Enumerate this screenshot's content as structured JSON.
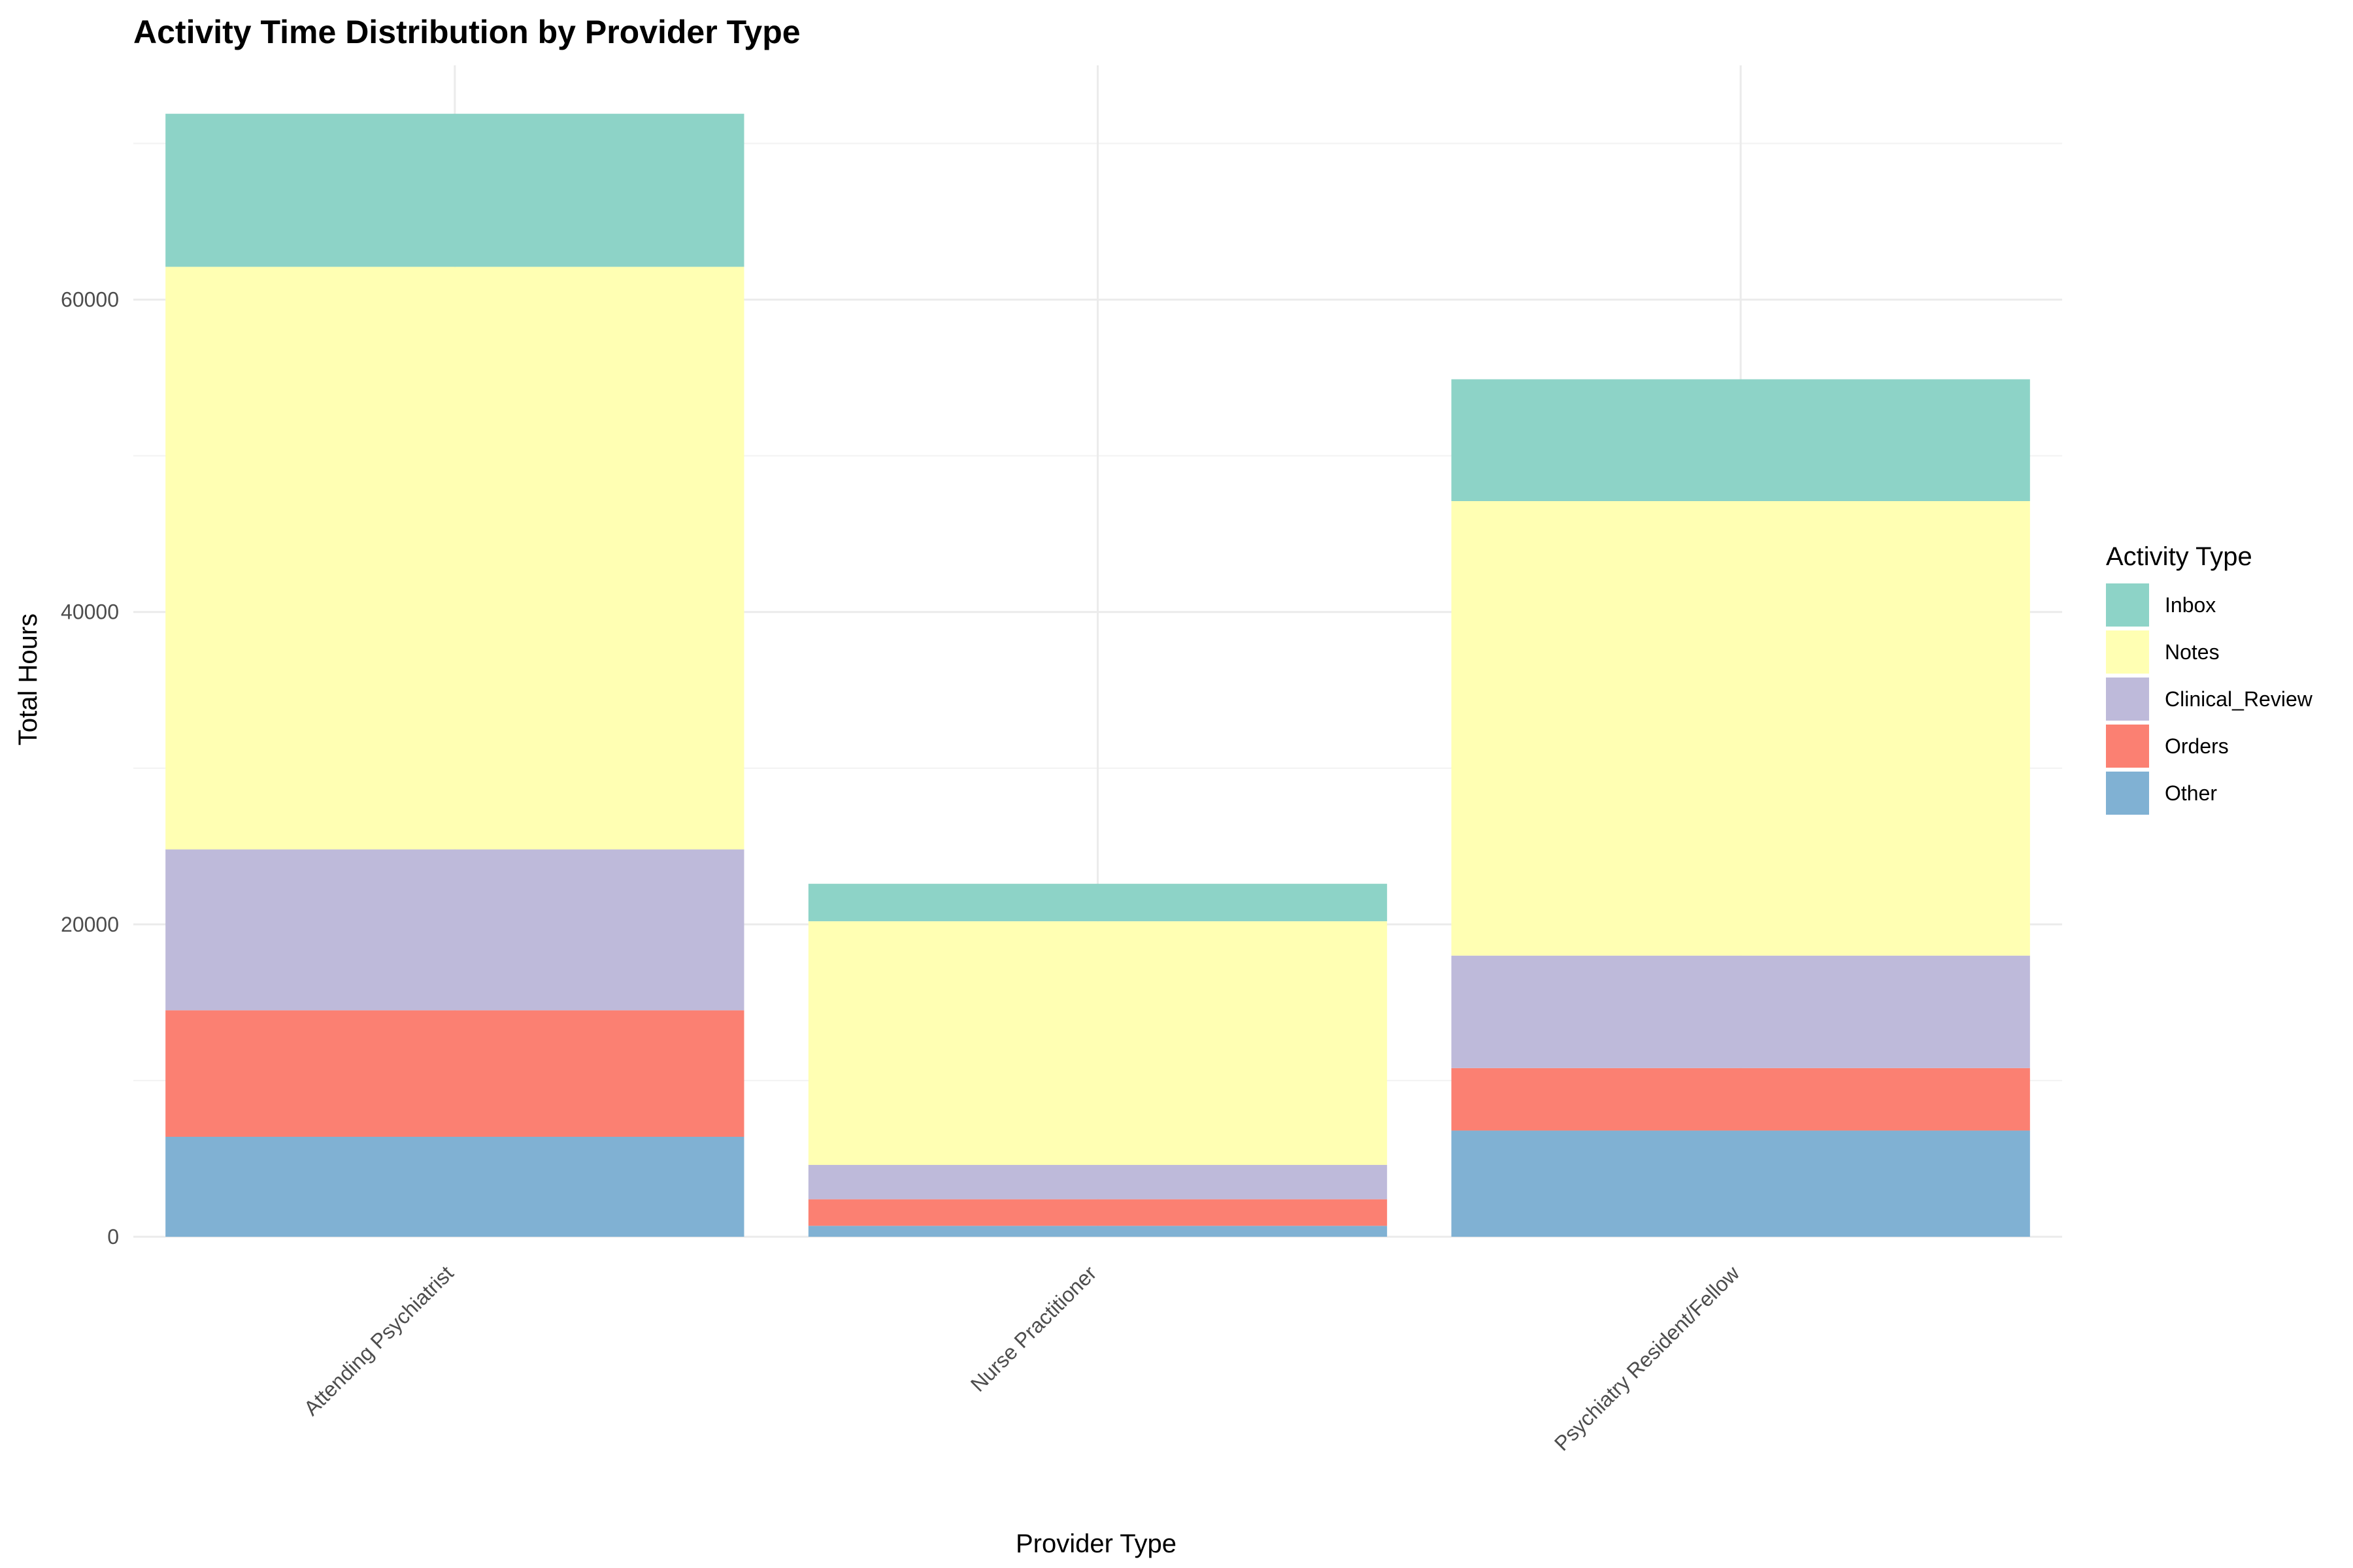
{
  "chart_data": {
    "type": "bar",
    "stacked": true,
    "title": "Activity Time Distribution by Provider Type",
    "xlabel": "Provider Type",
    "ylabel": "Total Hours",
    "categories": [
      "Attending Psychiatrist",
      "Nurse Practitioner",
      "Psychiatry Resident/Fellow"
    ],
    "ylim": [
      0,
      75000
    ],
    "yticks": [
      0,
      20000,
      40000,
      60000
    ],
    "ytick_labels": [
      "0",
      "20000",
      "40000",
      "60000"
    ],
    "grid": true,
    "legend": {
      "title": "Activity Type",
      "placement": "right"
    },
    "series": [
      {
        "name": "Other",
        "color": "#80B1D3",
        "values": [
          6400,
          700,
          6800
        ]
      },
      {
        "name": "Orders",
        "color": "#FB8072",
        "values": [
          8100,
          1700,
          4000
        ]
      },
      {
        "name": "Clinical_Review",
        "color": "#BEBADA",
        "values": [
          10300,
          2200,
          7200
        ]
      },
      {
        "name": "Notes",
        "color": "#FFFFB3",
        "values": [
          37300,
          15600,
          29100
        ]
      },
      {
        "name": "Inbox",
        "color": "#8DD3C7",
        "values": [
          9800,
          2400,
          7800
        ]
      }
    ],
    "legend_order": [
      "Inbox",
      "Notes",
      "Clinical_Review",
      "Orders",
      "Other"
    ]
  }
}
